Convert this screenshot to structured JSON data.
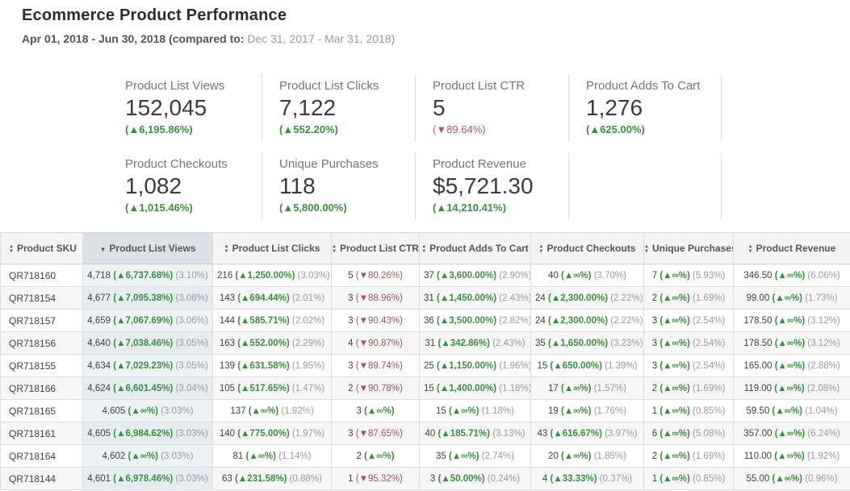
{
  "page": {
    "title": "Ecommerce Product Performance",
    "date_range": "Apr 01, 2018 - Jun 30, 2018 ",
    "compare_label": "(compared to: ",
    "compare_range": "Dec 31, 2017 - Mar 31, 2018)"
  },
  "colors": {
    "positive": "#3a8e3d",
    "negative": "#a84f60",
    "share_text": "#9a9a9a",
    "sorted_header_bg": "#dbe2e7",
    "sorted_column_bg": "#edf2f5",
    "header_bg": "#f4f4f4"
  },
  "kpis": [
    {
      "label": "Product List Views",
      "value": "152,045",
      "delta": "(▲6,195.86%)",
      "dir": "up"
    },
    {
      "label": "Product List Clicks",
      "value": "7,122",
      "delta": "(▲552.20%)",
      "dir": "up"
    },
    {
      "label": "Product List CTR",
      "value": "5",
      "delta": "(▼89.64%)",
      "dir": "down"
    },
    {
      "label": "Product Adds To Cart",
      "value": "1,276",
      "delta": "(▲625.00%)",
      "dir": "up"
    },
    {
      "label": "Product Checkouts",
      "value": "1,082",
      "delta": "(▲1,015.46%)",
      "dir": "up"
    },
    {
      "label": "Unique Purchases",
      "value": "118",
      "delta": "(▲5,800.00%)",
      "dir": "up"
    },
    {
      "label": "Product Revenue",
      "value": "$5,721.30",
      "delta": "(▲14,210.41%)",
      "dir": "up"
    }
  ],
  "table": {
    "columns": [
      {
        "key": "product-sku",
        "label": "Product SKU",
        "sort": "none"
      },
      {
        "key": "product-list-views",
        "label": "Product List Views",
        "sort": "desc"
      },
      {
        "key": "product-list-clicks",
        "label": "Product List Clicks",
        "sort": "none"
      },
      {
        "key": "product-list-ctr",
        "label": "Product List CTR",
        "sort": "none"
      },
      {
        "key": "product-adds-to-cart",
        "label": "Product Adds To Cart",
        "sort": "none"
      },
      {
        "key": "product-checkouts",
        "label": "Product Checkouts",
        "sort": "none"
      },
      {
        "key": "unique-purchases",
        "label": "Unique Purchases",
        "sort": "none"
      },
      {
        "key": "product-revenue",
        "label": "Product Revenue",
        "sort": "none"
      }
    ],
    "rows": [
      {
        "sku": "QR718160",
        "cells": [
          {
            "v": "4,718",
            "d": "(▲6,737.68%)",
            "dir": "up",
            "s": "(3.10%)"
          },
          {
            "v": "216",
            "d": "(▲1,250.00%)",
            "dir": "up",
            "s": "(3.03%)"
          },
          {
            "v": "5",
            "d": "(▼80.26%)",
            "dir": "down",
            "s": ""
          },
          {
            "v": "37",
            "d": "(▲3,600.00%)",
            "dir": "up",
            "s": "(2.90%)"
          },
          {
            "v": "40",
            "d": "(▲∞%)",
            "dir": "up",
            "s": "(3.70%)"
          },
          {
            "v": "7",
            "d": "(▲∞%)",
            "dir": "up",
            "s": "(5.93%)"
          },
          {
            "v": "346.50",
            "d": "(▲∞%)",
            "dir": "up",
            "s": "(6.06%)"
          }
        ]
      },
      {
        "sku": "QR718154",
        "cells": [
          {
            "v": "4,677",
            "d": "(▲7,095.38%)",
            "dir": "up",
            "s": "(3.08%)"
          },
          {
            "v": "143",
            "d": "(▲694.44%)",
            "dir": "up",
            "s": "(2.01%)"
          },
          {
            "v": "3",
            "d": "(▼88.96%)",
            "dir": "down",
            "s": ""
          },
          {
            "v": "31",
            "d": "(▲1,450.00%)",
            "dir": "up",
            "s": "(2.43%)"
          },
          {
            "v": "24",
            "d": "(▲2,300.00%)",
            "dir": "up",
            "s": "(2.22%)"
          },
          {
            "v": "2",
            "d": "(▲∞%)",
            "dir": "up",
            "s": "(1.69%)"
          },
          {
            "v": "99.00",
            "d": "(▲∞%)",
            "dir": "up",
            "s": "(1.73%)"
          }
        ]
      },
      {
        "sku": "QR718157",
        "cells": [
          {
            "v": "4,659",
            "d": "(▲7,067.69%)",
            "dir": "up",
            "s": "(3.06%)"
          },
          {
            "v": "144",
            "d": "(▲585.71%)",
            "dir": "up",
            "s": "(2.02%)"
          },
          {
            "v": "3",
            "d": "(▼90.43%)",
            "dir": "down",
            "s": ""
          },
          {
            "v": "36",
            "d": "(▲3,500.00%)",
            "dir": "up",
            "s": "(2.82%)"
          },
          {
            "v": "24",
            "d": "(▲2,300.00%)",
            "dir": "up",
            "s": "(2.22%)"
          },
          {
            "v": "3",
            "d": "(▲∞%)",
            "dir": "up",
            "s": "(2.54%)"
          },
          {
            "v": "178.50",
            "d": "(▲∞%)",
            "dir": "up",
            "s": "(3.12%)"
          }
        ]
      },
      {
        "sku": "QR718156",
        "cells": [
          {
            "v": "4,640",
            "d": "(▲7,038.46%)",
            "dir": "up",
            "s": "(3.05%)"
          },
          {
            "v": "163",
            "d": "(▲552.00%)",
            "dir": "up",
            "s": "(2.29%)"
          },
          {
            "v": "4",
            "d": "(▼90.87%)",
            "dir": "down",
            "s": ""
          },
          {
            "v": "31",
            "d": "(▲342.86%)",
            "dir": "up",
            "s": "(2.43%)"
          },
          {
            "v": "35",
            "d": "(▲1,650.00%)",
            "dir": "up",
            "s": "(3.23%)"
          },
          {
            "v": "3",
            "d": "(▲∞%)",
            "dir": "up",
            "s": "(2.54%)"
          },
          {
            "v": "178.50",
            "d": "(▲∞%)",
            "dir": "up",
            "s": "(3.12%)"
          }
        ]
      },
      {
        "sku": "QR718155",
        "cells": [
          {
            "v": "4,634",
            "d": "(▲7,029.23%)",
            "dir": "up",
            "s": "(3.05%)"
          },
          {
            "v": "139",
            "d": "(▲631.58%)",
            "dir": "up",
            "s": "(1.95%)"
          },
          {
            "v": "3",
            "d": "(▼89.74%)",
            "dir": "down",
            "s": ""
          },
          {
            "v": "25",
            "d": "(▲1,150.00%)",
            "dir": "up",
            "s": "(1.96%)"
          },
          {
            "v": "15",
            "d": "(▲650.00%)",
            "dir": "up",
            "s": "(1.39%)"
          },
          {
            "v": "3",
            "d": "(▲∞%)",
            "dir": "up",
            "s": "(2.54%)"
          },
          {
            "v": "165.00",
            "d": "(▲∞%)",
            "dir": "up",
            "s": "(2.88%)"
          }
        ]
      },
      {
        "sku": "QR718166",
        "cells": [
          {
            "v": "4,624",
            "d": "(▲6,601.45%)",
            "dir": "up",
            "s": "(3.04%)"
          },
          {
            "v": "105",
            "d": "(▲517.65%)",
            "dir": "up",
            "s": "(1.47%)"
          },
          {
            "v": "2",
            "d": "(▼90.78%)",
            "dir": "down",
            "s": ""
          },
          {
            "v": "15",
            "d": "(▲1,400.00%)",
            "dir": "up",
            "s": "(1.18%)"
          },
          {
            "v": "17",
            "d": "(▲∞%)",
            "dir": "up",
            "s": "(1.57%)"
          },
          {
            "v": "2",
            "d": "(▲∞%)",
            "dir": "up",
            "s": "(1.69%)"
          },
          {
            "v": "119.00",
            "d": "(▲∞%)",
            "dir": "up",
            "s": "(2.08%)"
          }
        ]
      },
      {
        "sku": "QR718165",
        "cells": [
          {
            "v": "4,605",
            "d": "(▲∞%)",
            "dir": "up",
            "s": "(3.03%)"
          },
          {
            "v": "137",
            "d": "(▲∞%)",
            "dir": "up",
            "s": "(1.92%)"
          },
          {
            "v": "3",
            "d": "(▲∞%)",
            "dir": "up",
            "s": ""
          },
          {
            "v": "15",
            "d": "(▲∞%)",
            "dir": "up",
            "s": "(1.18%)"
          },
          {
            "v": "19",
            "d": "(▲∞%)",
            "dir": "up",
            "s": "(1.76%)"
          },
          {
            "v": "1",
            "d": "(▲∞%)",
            "dir": "up",
            "s": "(0.85%)"
          },
          {
            "v": "59.50",
            "d": "(▲∞%)",
            "dir": "up",
            "s": "(1.04%)"
          }
        ]
      },
      {
        "sku": "QR718161",
        "cells": [
          {
            "v": "4,605",
            "d": "(▲6,984.62%)",
            "dir": "up",
            "s": "(3.03%)"
          },
          {
            "v": "140",
            "d": "(▲775.00%)",
            "dir": "up",
            "s": "(1.97%)"
          },
          {
            "v": "3",
            "d": "(▼87.65%)",
            "dir": "down",
            "s": ""
          },
          {
            "v": "40",
            "d": "(▲185.71%)",
            "dir": "up",
            "s": "(3.13%)"
          },
          {
            "v": "43",
            "d": "(▲616.67%)",
            "dir": "up",
            "s": "(3.97%)"
          },
          {
            "v": "6",
            "d": "(▲∞%)",
            "dir": "up",
            "s": "(5.08%)"
          },
          {
            "v": "357.00",
            "d": "(▲∞%)",
            "dir": "up",
            "s": "(6.24%)"
          }
        ]
      },
      {
        "sku": "QR718164",
        "cells": [
          {
            "v": "4,602",
            "d": "(▲∞%)",
            "dir": "up",
            "s": "(3.03%)"
          },
          {
            "v": "81",
            "d": "(▲∞%)",
            "dir": "up",
            "s": "(1.14%)"
          },
          {
            "v": "2",
            "d": "(▲∞%)",
            "dir": "up",
            "s": ""
          },
          {
            "v": "35",
            "d": "(▲∞%)",
            "dir": "up",
            "s": "(2.74%)"
          },
          {
            "v": "20",
            "d": "(▲∞%)",
            "dir": "up",
            "s": "(1.85%)"
          },
          {
            "v": "2",
            "d": "(▲∞%)",
            "dir": "up",
            "s": "(1.69%)"
          },
          {
            "v": "110.00",
            "d": "(▲∞%)",
            "dir": "up",
            "s": "(1.92%)"
          }
        ]
      },
      {
        "sku": "QR718144",
        "cells": [
          {
            "v": "4,601",
            "d": "(▲6,978.46%)",
            "dir": "up",
            "s": "(3.03%)"
          },
          {
            "v": "63",
            "d": "(▲231.58%)",
            "dir": "up",
            "s": "(0.88%)"
          },
          {
            "v": "1",
            "d": "(▼95.32%)",
            "dir": "down",
            "s": ""
          },
          {
            "v": "3",
            "d": "(▲50.00%)",
            "dir": "up",
            "s": "(0.24%)"
          },
          {
            "v": "4",
            "d": "(▲33.33%)",
            "dir": "up",
            "s": "(0.37%)"
          },
          {
            "v": "1",
            "d": "(▲∞%)",
            "dir": "up",
            "s": "(0.85%)"
          },
          {
            "v": "55.00",
            "d": "(▲∞%)",
            "dir": "up",
            "s": "(0.96%)"
          }
        ]
      }
    ]
  }
}
